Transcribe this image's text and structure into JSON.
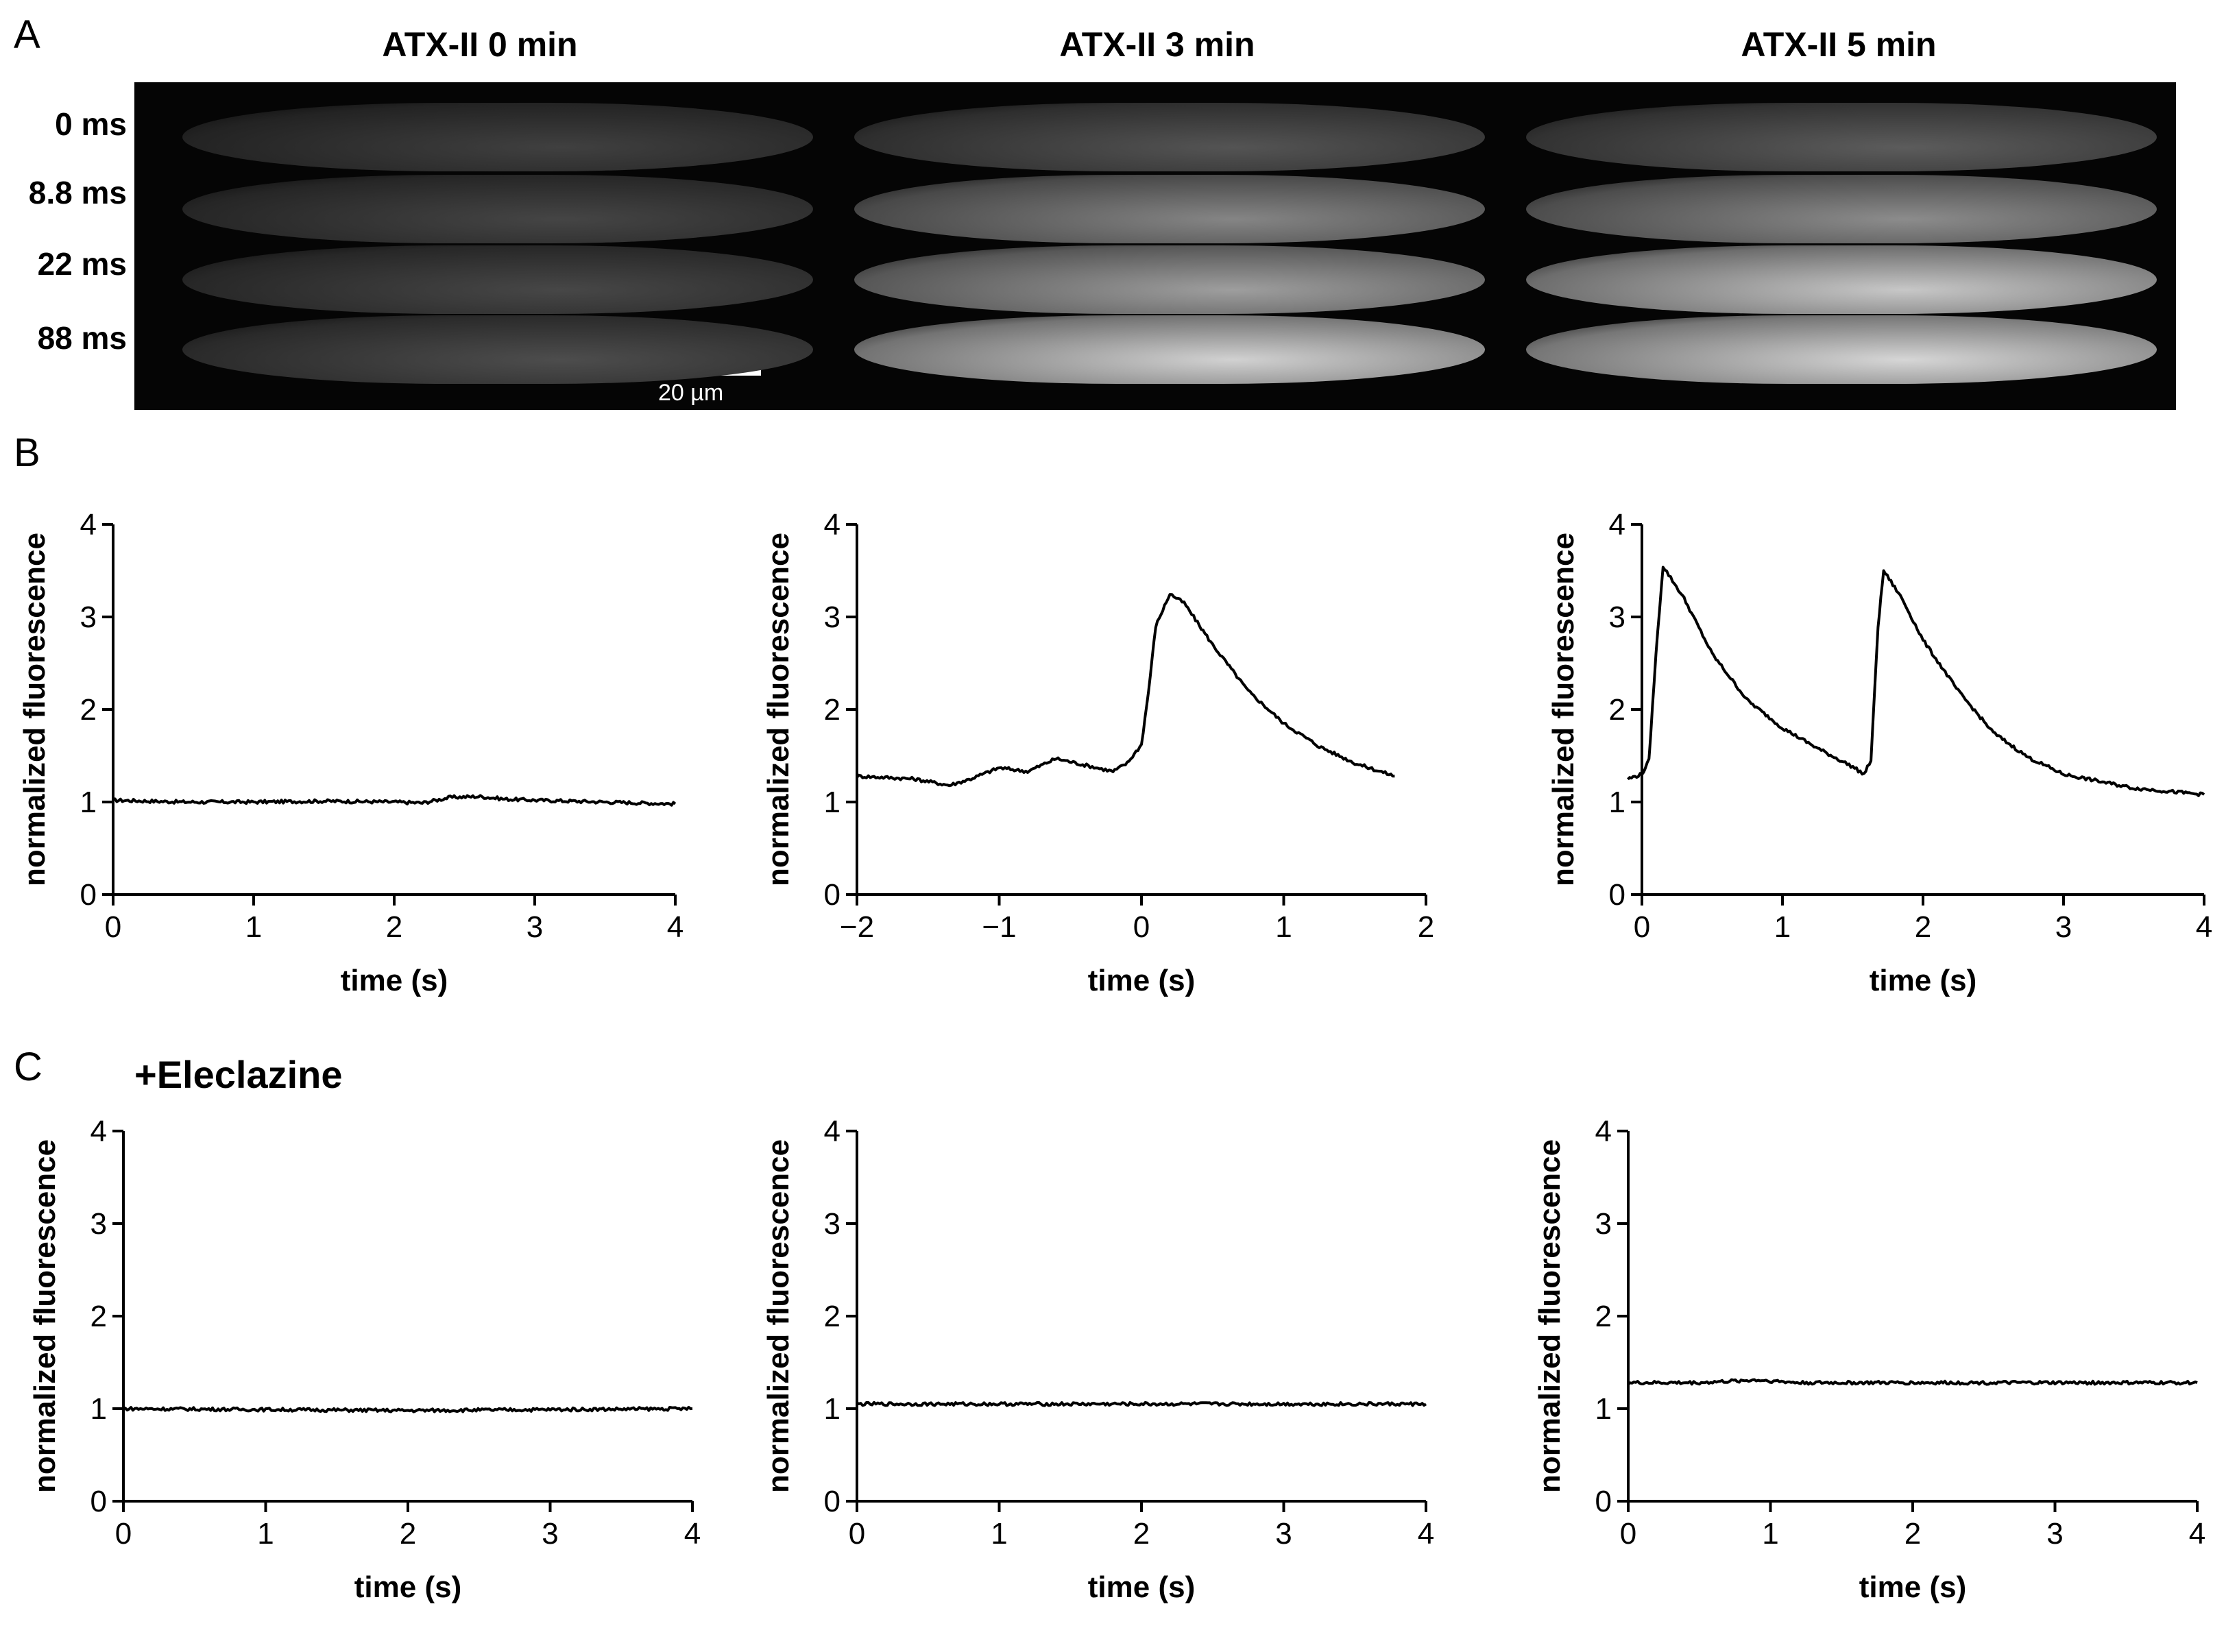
{
  "panel_a": {
    "letter": "A",
    "column_titles": [
      "ATX-II 0 min",
      "ATX-II 3 min",
      "ATX-II 5 min"
    ],
    "row_labels": [
      "0 ms",
      "8.8 ms",
      "22 ms",
      "88 ms"
    ],
    "scale_bar_label": "20 µm",
    "brightness": [
      [
        0.25,
        0.27,
        0.28,
        0.3
      ],
      [
        0.33,
        0.52,
        0.62,
        0.82
      ],
      [
        0.36,
        0.55,
        0.78,
        0.84
      ]
    ]
  },
  "panel_b": {
    "letter": "B"
  },
  "panel_c": {
    "letter": "C",
    "annotation": "+Eleclazine"
  },
  "chart_data": [
    {
      "id": "B1",
      "type": "line",
      "xlabel": "time (s)",
      "ylabel": "normalized fluorescence",
      "xlim": [
        0,
        4
      ],
      "ylim": [
        0,
        4
      ],
      "xticks": [
        0,
        1,
        2,
        3,
        4
      ],
      "yticks": [
        0,
        1,
        2,
        3,
        4
      ],
      "xtick_labels": [
        "0",
        "1",
        "2",
        "3",
        "4"
      ],
      "series": [
        {
          "x": [
            0,
            0.5,
            1,
            1.5,
            2,
            2.2,
            2.4,
            2.6,
            2.8,
            3,
            3.5,
            4
          ],
          "y": [
            1.02,
            1.0,
            1.0,
            1.01,
            1.0,
            0.99,
            1.05,
            1.06,
            1.03,
            1.02,
            1.0,
            0.98
          ]
        }
      ]
    },
    {
      "id": "B2",
      "type": "line",
      "xlabel": "time (s)",
      "ylabel": "normalized fluorescence",
      "xlim": [
        -2,
        2
      ],
      "ylim": [
        0,
        4
      ],
      "xticks": [
        -2,
        -1,
        0,
        1,
        2
      ],
      "yticks": [
        0,
        1,
        2,
        3,
        4
      ],
      "xtick_labels": [
        "−2",
        "−1",
        "0",
        "1",
        "2"
      ],
      "series": [
        {
          "x": [
            -2,
            -1.6,
            -1.35,
            -1.2,
            -1.0,
            -0.8,
            -0.6,
            -0.4,
            -0.2,
            -0.1,
            -0.05,
            0.0,
            0.05,
            0.1,
            0.2,
            0.3,
            0.5,
            0.75,
            1.0,
            1.25,
            1.5,
            1.78
          ],
          "y": [
            1.28,
            1.25,
            1.18,
            1.25,
            1.37,
            1.33,
            1.47,
            1.4,
            1.33,
            1.42,
            1.52,
            1.62,
            2.2,
            2.9,
            3.25,
            3.15,
            2.7,
            2.2,
            1.85,
            1.6,
            1.42,
            1.28
          ]
        }
      ]
    },
    {
      "id": "B3",
      "type": "line",
      "xlabel": "time (s)",
      "ylabel": "normalized fluorescence",
      "xlim": [
        0,
        4
      ],
      "ylim": [
        0,
        4
      ],
      "xticks": [
        0,
        1,
        2,
        3,
        4
      ],
      "yticks": [
        0,
        1,
        2,
        3,
        4
      ],
      "xtick_labels": [
        "0",
        "1",
        "2",
        "3",
        "4"
      ],
      "series": [
        {
          "x": [
            -0.1,
            0.0,
            0.05,
            0.1,
            0.15,
            0.3,
            0.5,
            0.75,
            1.0,
            1.25,
            1.5,
            1.58,
            1.63,
            1.68,
            1.72,
            1.85,
            2.0,
            2.25,
            2.5,
            2.75,
            3.0,
            3.5,
            4.0
          ],
          "y": [
            1.25,
            1.3,
            1.45,
            2.6,
            3.55,
            3.2,
            2.6,
            2.1,
            1.8,
            1.58,
            1.38,
            1.3,
            1.45,
            2.9,
            3.5,
            3.2,
            2.75,
            2.2,
            1.75,
            1.48,
            1.3,
            1.15,
            1.08
          ]
        }
      ]
    },
    {
      "id": "C1",
      "type": "line",
      "xlabel": "time (s)",
      "ylabel": "normalized fluorescence",
      "xlim": [
        0,
        4
      ],
      "ylim": [
        0,
        4
      ],
      "xticks": [
        0,
        1,
        2,
        3,
        4
      ],
      "yticks": [
        0,
        1,
        2,
        3,
        4
      ],
      "xtick_labels": [
        "0",
        "1",
        "2",
        "3",
        "4"
      ],
      "series": [
        {
          "x": [
            0,
            1,
            2,
            3,
            4
          ],
          "y": [
            1.0,
            0.99,
            0.98,
            0.99,
            1.0
          ]
        }
      ]
    },
    {
      "id": "C2",
      "type": "line",
      "xlabel": "time (s)",
      "ylabel": "normalized fluorescence",
      "xlim": [
        0,
        4
      ],
      "ylim": [
        0,
        4
      ],
      "xticks": [
        0,
        1,
        2,
        3,
        4
      ],
      "yticks": [
        0,
        1,
        2,
        3,
        4
      ],
      "xtick_labels": [
        "0",
        "1",
        "2",
        "3",
        "4"
      ],
      "series": [
        {
          "x": [
            0,
            1,
            2,
            3,
            4
          ],
          "y": [
            1.05,
            1.05,
            1.05,
            1.05,
            1.05
          ]
        }
      ]
    },
    {
      "id": "C3",
      "type": "line",
      "xlabel": "time (s)",
      "ylabel": "normalized fluorescence",
      "xlim": [
        0,
        4
      ],
      "ylim": [
        0,
        4
      ],
      "xticks": [
        0,
        1,
        2,
        3,
        4
      ],
      "yticks": [
        0,
        1,
        2,
        3,
        4
      ],
      "xtick_labels": [
        "0",
        "1",
        "2",
        "3",
        "4"
      ],
      "series": [
        {
          "x": [
            0,
            0.5,
            0.9,
            1.2,
            2,
            3,
            4
          ],
          "y": [
            1.28,
            1.28,
            1.31,
            1.28,
            1.28,
            1.28,
            1.28
          ]
        }
      ]
    }
  ]
}
